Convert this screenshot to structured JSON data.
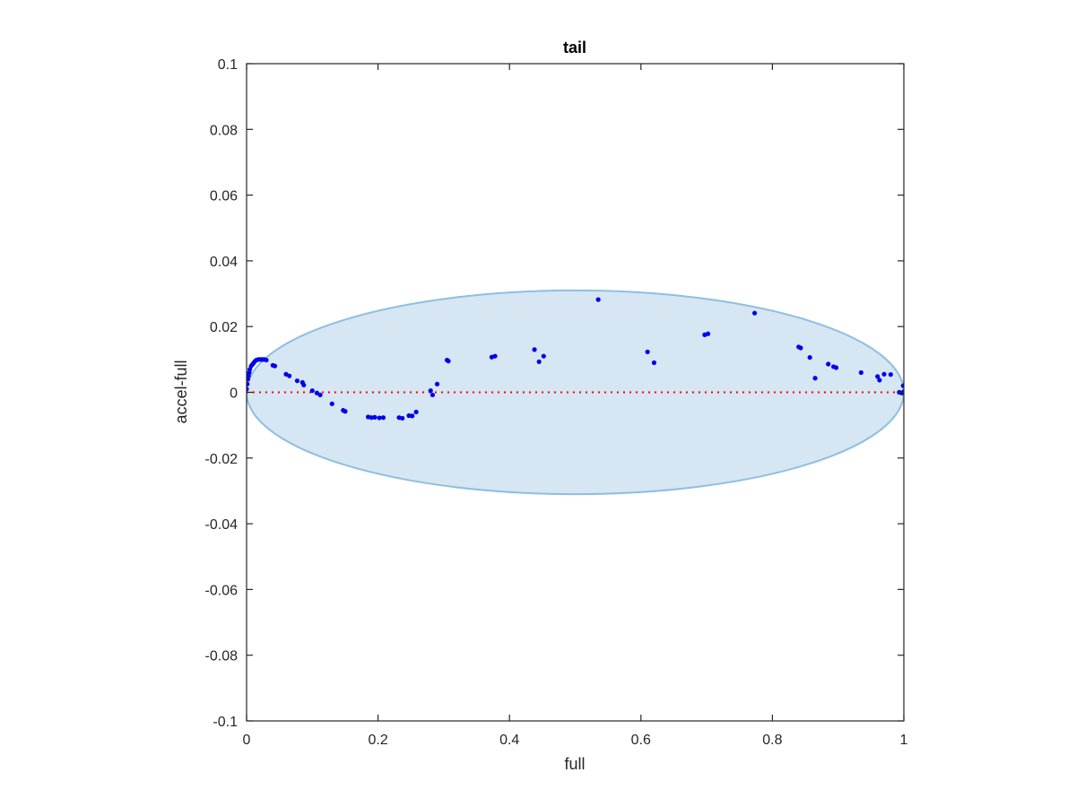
{
  "chart_data": {
    "type": "scatter",
    "title": "tail",
    "xlabel": "full",
    "ylabel": "accel-full",
    "xlim": [
      0,
      1
    ],
    "ylim": [
      -0.1,
      0.1
    ],
    "xticks": [
      0,
      0.2,
      0.4,
      0.6,
      0.8,
      1
    ],
    "xtick_labels": [
      "0",
      "0.2",
      "0.4",
      "0.6",
      "0.8",
      "1"
    ],
    "yticks": [
      0.1,
      0.08,
      0.06,
      0.04,
      0.02,
      0,
      -0.02,
      -0.04,
      -0.06,
      -0.08,
      -0.1
    ],
    "ytick_labels": [
      "0.1",
      "0.08",
      "0.06",
      "0.04",
      "0.02",
      "0",
      "-0.02",
      "-0.04",
      "-0.06",
      "-0.08",
      "-0.1"
    ],
    "grid": false,
    "reference_line": {
      "y": 0,
      "style": "dotted",
      "color": "#ff0000"
    },
    "ellipse": {
      "cx": 0.5,
      "cy": 0,
      "rx": 0.5,
      "ry": 0.031,
      "fill": "#d6e6f3",
      "stroke": "#8fbfe0"
    },
    "series": [
      {
        "color": "#0000ee",
        "x": [
          0,
          0.001,
          0.002,
          0.003,
          0.004,
          0.005,
          0.007,
          0.009,
          0.011,
          0.013,
          0.015,
          0.018,
          0.021,
          0.024,
          0.027,
          0.03,
          0.04,
          0.043,
          0.06,
          0.065,
          0.077,
          0.085,
          0.087,
          0.1,
          0.107,
          0.112,
          0.13,
          0.147,
          0.15,
          0.185,
          0.19,
          0.195,
          0.202,
          0.208,
          0.232,
          0.237,
          0.247,
          0.252,
          0.258,
          0.28,
          0.283,
          0.29,
          0.305,
          0.307,
          0.373,
          0.378,
          0.438,
          0.445,
          0.452,
          0.535,
          0.61,
          0.62,
          0.697,
          0.702,
          0.773,
          0.84,
          0.843,
          0.857,
          0.865,
          0.885,
          0.893,
          0.897,
          0.935,
          0.96,
          0.963,
          0.97,
          0.98,
          0.993,
          0.997,
          0.999,
          1.0
        ],
        "y": [
          0.001,
          0.0025,
          0.004,
          0.005,
          0.006,
          0.007,
          0.008,
          0.0085,
          0.009,
          0.0095,
          0.0098,
          0.01,
          0.01,
          0.01,
          0.01,
          0.0098,
          0.0082,
          0.008,
          0.0055,
          0.005,
          0.0035,
          0.003,
          0.0022,
          0.0005,
          -0.0002,
          -0.0008,
          -0.0035,
          -0.0055,
          -0.0058,
          -0.0075,
          -0.0077,
          -0.0076,
          -0.0078,
          -0.0077,
          -0.0077,
          -0.0079,
          -0.0071,
          -0.0072,
          -0.006,
          0.0005,
          -0.0008,
          0.0025,
          0.0098,
          0.0095,
          0.0107,
          0.011,
          0.013,
          0.0093,
          0.011,
          0.0282,
          0.0123,
          0.009,
          0.0175,
          0.0178,
          0.0241,
          0.0138,
          0.0135,
          0.0106,
          0.0043,
          0.0086,
          0.0078,
          0.0075,
          0.006,
          0.0048,
          0.0037,
          0.0055,
          0.0054,
          0.0,
          -0.0002,
          0.002,
          0.0002
        ]
      }
    ]
  }
}
